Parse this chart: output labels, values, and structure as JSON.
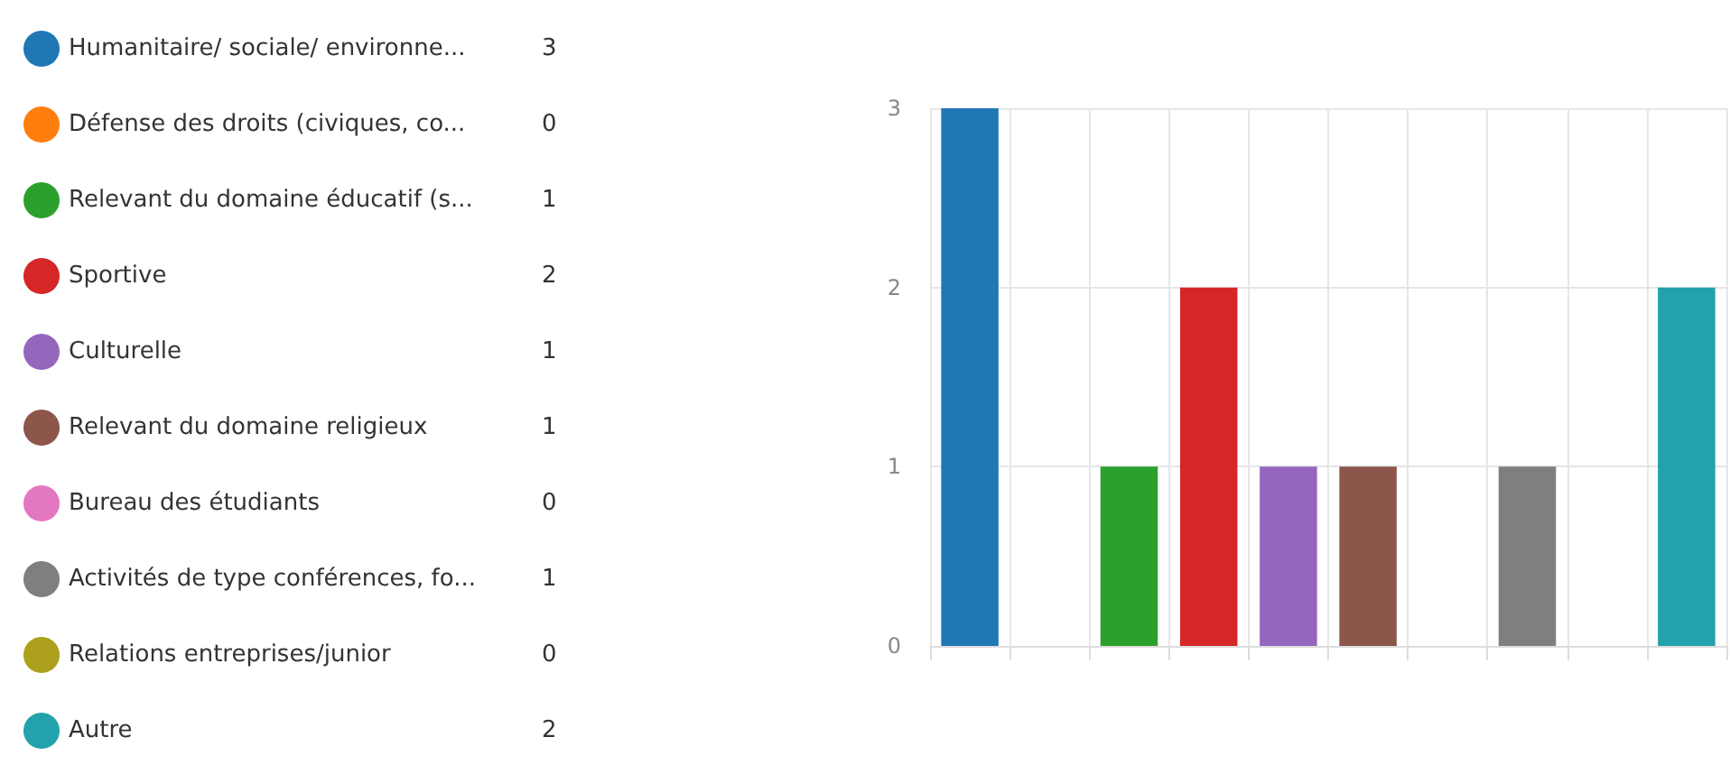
{
  "chart_data": {
    "type": "bar",
    "categories": [
      null,
      null,
      null,
      null,
      null,
      null,
      null,
      null,
      null,
      null
    ],
    "series": [
      {
        "name": "Humanitaire/ sociale/ environne...",
        "color": "#1f77b4",
        "values": [
          3,
          null,
          null,
          null,
          null,
          null,
          null,
          null,
          null,
          null
        ]
      },
      {
        "name": "Défense des droits (civiques, co...",
        "color": "#ff7f0e",
        "values": [
          null,
          0,
          null,
          null,
          null,
          null,
          null,
          null,
          null,
          null
        ]
      },
      {
        "name": "Relevant du domaine éducatif (s...",
        "color": "#2ca02c",
        "values": [
          null,
          null,
          1,
          null,
          null,
          null,
          null,
          null,
          null,
          null
        ]
      },
      {
        "name": "Sportive",
        "color": "#d62728",
        "values": [
          null,
          null,
          null,
          2,
          null,
          null,
          null,
          null,
          null,
          null
        ]
      },
      {
        "name": "Culturelle",
        "color": "#9467bd",
        "values": [
          null,
          null,
          null,
          null,
          1,
          null,
          null,
          null,
          null,
          null
        ]
      },
      {
        "name": "Relevant du domaine religieux",
        "color": "#8c564b",
        "values": [
          null,
          null,
          null,
          null,
          null,
          1,
          null,
          null,
          null,
          null
        ]
      },
      {
        "name": "Bureau des étudiants",
        "color": "#e377c2",
        "values": [
          null,
          null,
          null,
          null,
          null,
          null,
          0,
          null,
          null,
          null
        ]
      },
      {
        "name": "Activités de type conférences, fo...",
        "color": "#7f7f7f",
        "values": [
          null,
          null,
          null,
          null,
          null,
          null,
          null,
          1,
          null,
          null
        ]
      },
      {
        "name": "Relations entreprises/junior",
        "color": "#aca01c",
        "values": [
          null,
          null,
          null,
          null,
          null,
          null,
          null,
          null,
          0,
          null
        ]
      },
      {
        "name": "Autre",
        "color": "#22a2aa",
        "values": [
          null,
          null,
          null,
          null,
          null,
          null,
          null,
          null,
          null,
          2
        ]
      }
    ],
    "ylim": [
      0,
      3
    ],
    "yticks": [
      0,
      1,
      2,
      3
    ],
    "annotations": [
      "3",
      "0",
      "1",
      "2",
      "1",
      "1",
      "0",
      "1",
      "0",
      "2"
    ],
    "grid": true,
    "legend": "left",
    "tick_labels": "y"
  }
}
